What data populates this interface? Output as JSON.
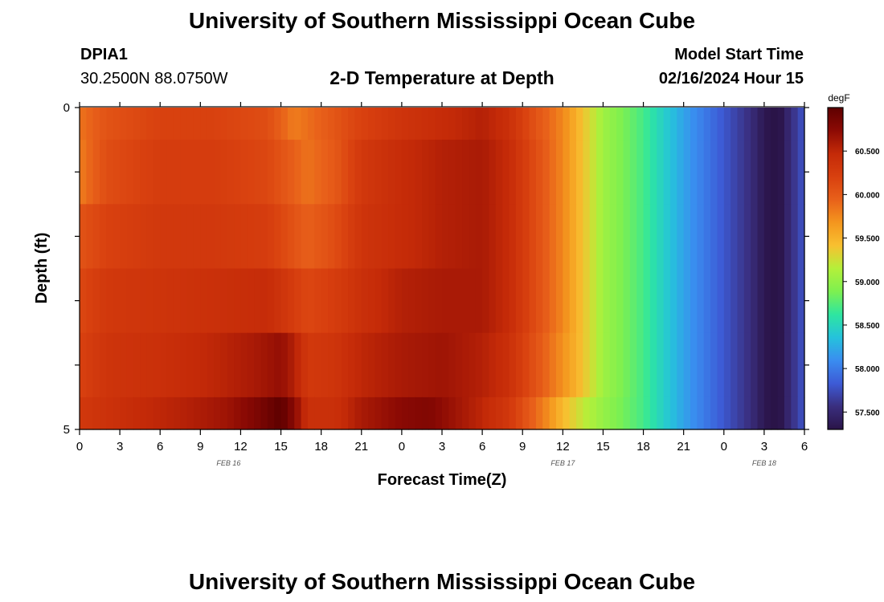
{
  "header": {
    "title": "University of Southern Mississippi Ocean Cube",
    "station_id": "DPIA1",
    "station_coords": "30.2500N  88.0750W",
    "plot_title": "2-D Temperature at Depth",
    "model_start_label": "Model Start Time",
    "model_start_value": "02/16/2024 Hour 15"
  },
  "footer": {
    "title": "University of Southern Mississippi Ocean Cube"
  },
  "colors": {
    "scale": [
      "#2a1448",
      "#3a2e7e",
      "#3d5bd6",
      "#3a8df0",
      "#25c2dc",
      "#2ee6a0",
      "#7df050",
      "#b4f03a",
      "#f8c030",
      "#f4961e",
      "#e8601a",
      "#d8400f",
      "#c42a08",
      "#8c0a04",
      "#5e0000"
    ]
  },
  "chart_data": {
    "type": "heatmap",
    "title": "2-D Temperature at Depth",
    "xlabel": "Forecast Time(Z)",
    "ylabel": "Depth (ft)",
    "x_tick_labels": [
      "0",
      "3",
      "6",
      "9",
      "12",
      "15",
      "18",
      "21",
      "0",
      "3",
      "6",
      "9",
      "12",
      "15",
      "18",
      "21",
      "0",
      "3",
      "6"
    ],
    "x_day_labels": [
      {
        "label": "FEB 16",
        "at_tick": 3.7
      },
      {
        "label": "FEB 17",
        "at_tick": 12
      },
      {
        "label": "FEB 18",
        "at_tick": 17
      }
    ],
    "y_tick_labels": [
      "0",
      "5"
    ],
    "ylim": [
      0,
      5
    ],
    "x_hours_range": [
      0,
      54
    ],
    "colorbar": {
      "unit": "degF",
      "min": 57.3,
      "max": 61.0,
      "tick_labels": [
        "60.500",
        "60.000",
        "59.500",
        "59.000",
        "58.500",
        "58.000",
        "57.500"
      ],
      "tick_values": [
        60.5,
        60.0,
        59.5,
        59.0,
        58.5,
        58.0,
        57.5
      ]
    },
    "layers": [
      {
        "depth_range": [
          0.0,
          0.5
        ],
        "knots": [
          [
            0,
            59.85
          ],
          [
            2,
            60.05
          ],
          [
            6,
            60.2
          ],
          [
            10,
            60.2
          ],
          [
            14,
            60.1
          ],
          [
            16,
            59.8
          ],
          [
            18,
            59.95
          ],
          [
            21,
            60.2
          ],
          [
            24,
            60.35
          ],
          [
            27,
            60.45
          ],
          [
            30,
            60.55
          ],
          [
            32,
            60.4
          ],
          [
            34,
            60.05
          ],
          [
            36,
            59.75
          ],
          [
            37.5,
            59.4
          ],
          [
            39,
            59.05
          ],
          [
            42,
            58.7
          ],
          [
            45,
            58.2
          ],
          [
            48,
            57.8
          ],
          [
            50,
            57.55
          ],
          [
            51,
            57.35
          ],
          [
            52,
            57.25
          ],
          [
            53,
            57.55
          ],
          [
            54,
            57.8
          ]
        ]
      },
      {
        "depth_range": [
          0.5,
          1.5
        ],
        "knots": [
          [
            0,
            59.8
          ],
          [
            2,
            60.1
          ],
          [
            6,
            60.25
          ],
          [
            10,
            60.25
          ],
          [
            14,
            60.15
          ],
          [
            17,
            59.85
          ],
          [
            19,
            60.0
          ],
          [
            21,
            60.3
          ],
          [
            24,
            60.45
          ],
          [
            27,
            60.55
          ],
          [
            30,
            60.6
          ],
          [
            32,
            60.45
          ],
          [
            34,
            60.1
          ],
          [
            36,
            59.75
          ],
          [
            37.5,
            59.4
          ],
          [
            39,
            59.05
          ],
          [
            42,
            58.7
          ],
          [
            45,
            58.2
          ],
          [
            48,
            57.8
          ],
          [
            50,
            57.55
          ],
          [
            51,
            57.35
          ],
          [
            52,
            57.25
          ],
          [
            53,
            57.55
          ],
          [
            54,
            57.8
          ]
        ]
      },
      {
        "depth_range": [
          1.5,
          2.5
        ],
        "knots": [
          [
            0,
            60.05
          ],
          [
            2,
            60.2
          ],
          [
            6,
            60.3
          ],
          [
            10,
            60.3
          ],
          [
            14,
            60.25
          ],
          [
            17,
            59.95
          ],
          [
            19,
            60.1
          ],
          [
            21,
            60.35
          ],
          [
            24,
            60.45
          ],
          [
            27,
            60.55
          ],
          [
            30,
            60.6
          ],
          [
            32,
            60.45
          ],
          [
            34,
            60.1
          ],
          [
            36,
            59.75
          ],
          [
            37.5,
            59.4
          ],
          [
            39,
            59.05
          ],
          [
            42,
            58.7
          ],
          [
            45,
            58.2
          ],
          [
            48,
            57.8
          ],
          [
            50,
            57.55
          ],
          [
            51,
            57.35
          ],
          [
            52,
            57.25
          ],
          [
            53,
            57.55
          ],
          [
            54,
            57.8
          ]
        ]
      },
      {
        "depth_range": [
          2.5,
          3.5
        ],
        "knots": [
          [
            0,
            60.15
          ],
          [
            2,
            60.3
          ],
          [
            6,
            60.35
          ],
          [
            10,
            60.4
          ],
          [
            14,
            60.45
          ],
          [
            17,
            60.15
          ],
          [
            19,
            60.25
          ],
          [
            21,
            60.4
          ],
          [
            24,
            60.55
          ],
          [
            27,
            60.6
          ],
          [
            30,
            60.6
          ],
          [
            32,
            60.45
          ],
          [
            34,
            60.1
          ],
          [
            36,
            59.75
          ],
          [
            37.5,
            59.4
          ],
          [
            39,
            59.05
          ],
          [
            42,
            58.7
          ],
          [
            45,
            58.2
          ],
          [
            48,
            57.8
          ],
          [
            50,
            57.55
          ],
          [
            51,
            57.35
          ],
          [
            52,
            57.25
          ],
          [
            53,
            57.55
          ],
          [
            54,
            57.8
          ]
        ]
      },
      {
        "depth_range": [
          3.5,
          4.5
        ],
        "knots": [
          [
            0,
            60.2
          ],
          [
            2,
            60.35
          ],
          [
            6,
            60.4
          ],
          [
            10,
            60.5
          ],
          [
            13,
            60.6
          ],
          [
            15,
            60.7
          ],
          [
            16,
            60.55
          ],
          [
            17,
            60.3
          ],
          [
            19,
            60.35
          ],
          [
            21,
            60.5
          ],
          [
            24,
            60.6
          ],
          [
            27,
            60.65
          ],
          [
            30,
            60.55
          ],
          [
            32,
            60.4
          ],
          [
            34,
            60.05
          ],
          [
            36,
            59.7
          ],
          [
            37.5,
            59.4
          ],
          [
            39,
            59.05
          ],
          [
            42,
            58.7
          ],
          [
            45,
            58.2
          ],
          [
            48,
            57.8
          ],
          [
            50,
            57.55
          ],
          [
            51,
            57.35
          ],
          [
            52,
            57.25
          ],
          [
            53,
            57.55
          ],
          [
            54,
            57.8
          ]
        ]
      },
      {
        "depth_range": [
          4.5,
          5.0
        ],
        "knots": [
          [
            0,
            60.3
          ],
          [
            4,
            60.45
          ],
          [
            8,
            60.55
          ],
          [
            11,
            60.65
          ],
          [
            13,
            60.8
          ],
          [
            15,
            61.0
          ],
          [
            16,
            60.75
          ],
          [
            17,
            60.4
          ],
          [
            19,
            60.4
          ],
          [
            21,
            60.6
          ],
          [
            24,
            60.75
          ],
          [
            26,
            60.8
          ],
          [
            28,
            60.65
          ],
          [
            30,
            60.5
          ],
          [
            32,
            60.3
          ],
          [
            34,
            59.9
          ],
          [
            35,
            59.7
          ],
          [
            36,
            59.45
          ],
          [
            37.5,
            59.2
          ],
          [
            39,
            59.0
          ],
          [
            42,
            58.7
          ],
          [
            45,
            58.2
          ],
          [
            48,
            57.8
          ],
          [
            50,
            57.55
          ],
          [
            51,
            57.35
          ],
          [
            52,
            57.25
          ],
          [
            53,
            57.55
          ],
          [
            54,
            57.8
          ]
        ]
      }
    ]
  }
}
